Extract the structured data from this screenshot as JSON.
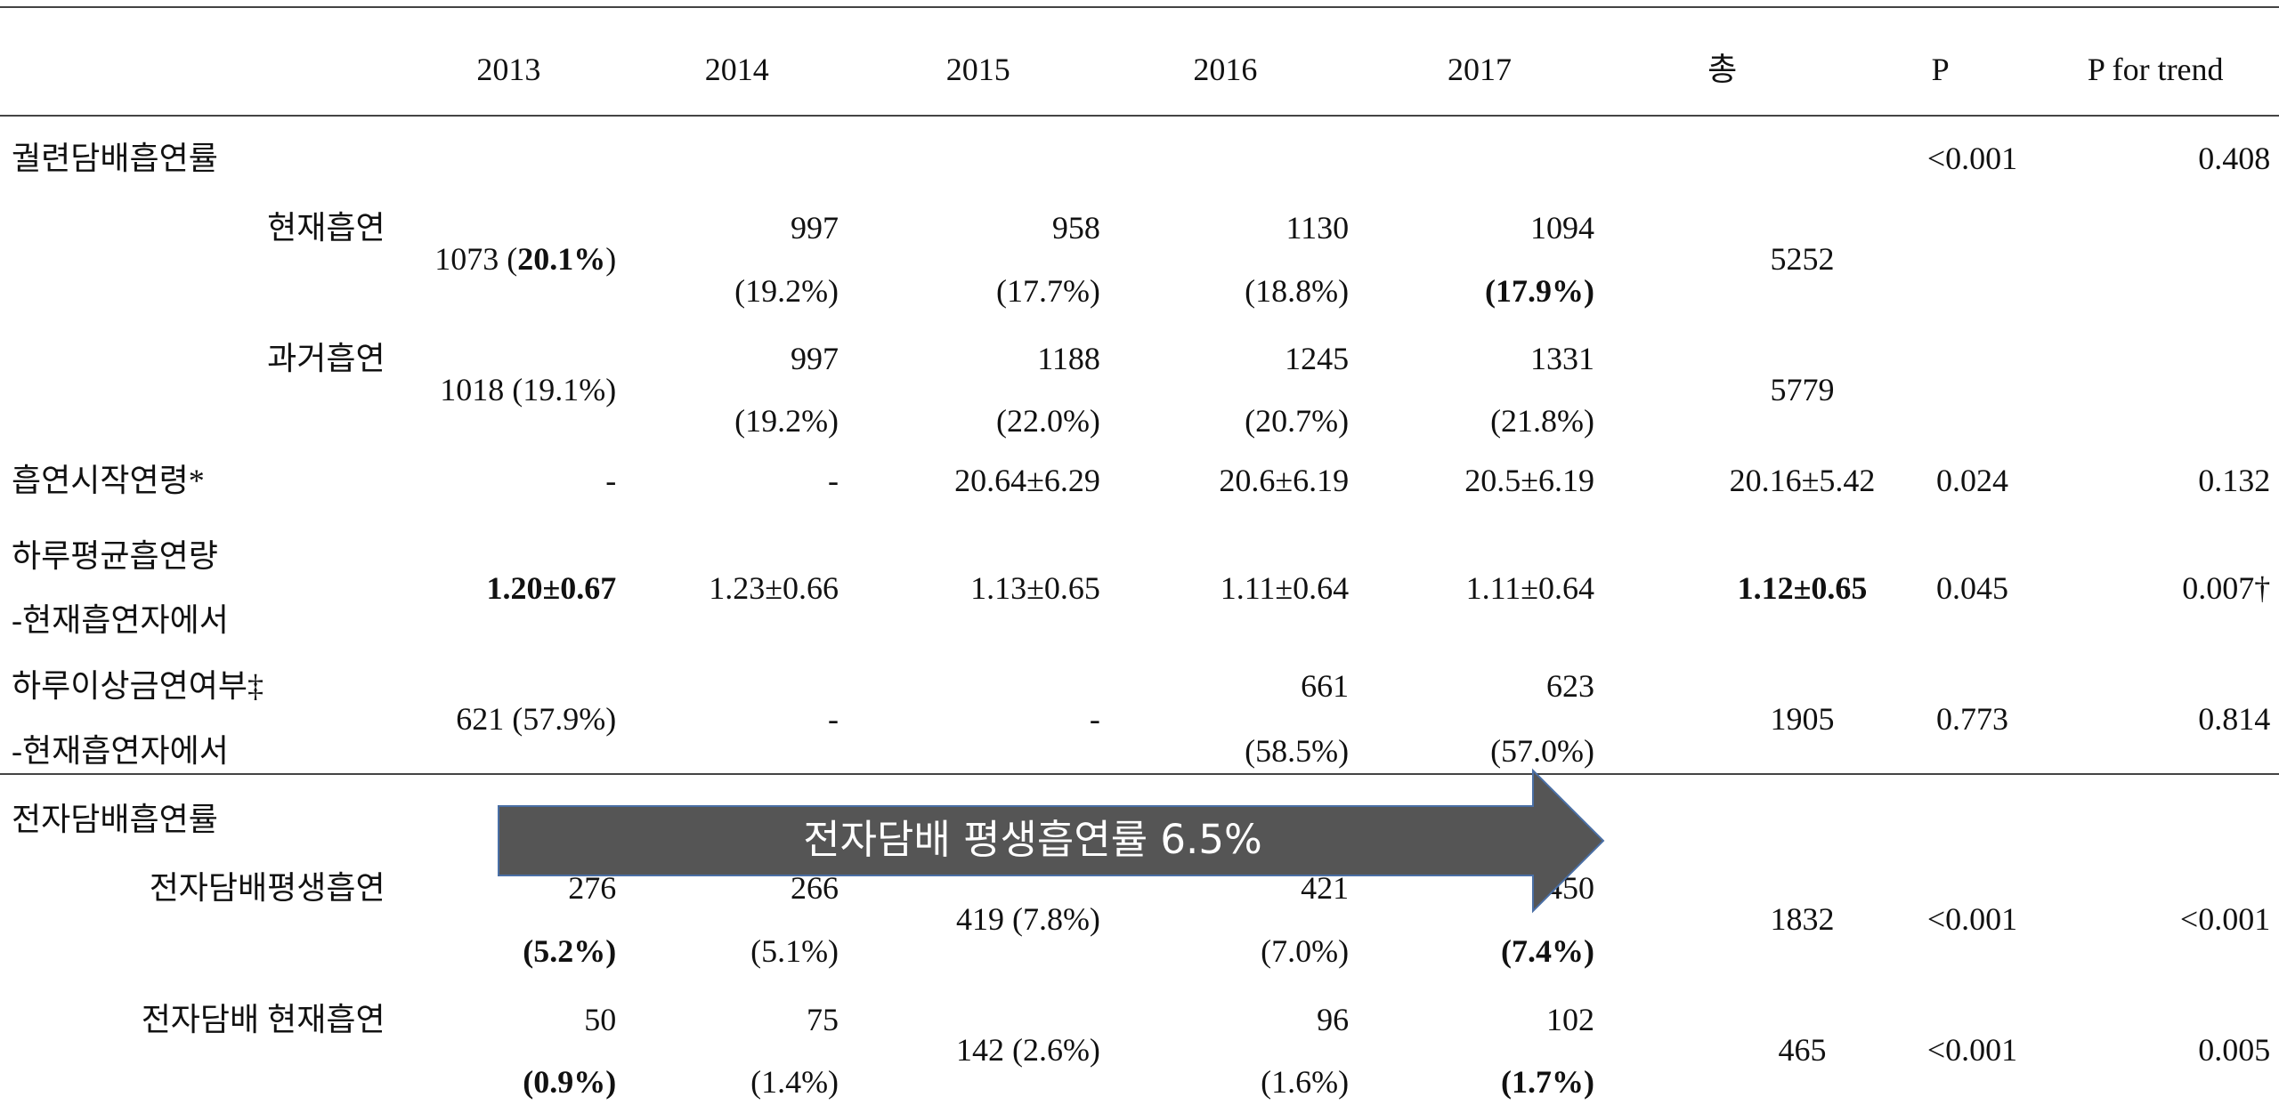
{
  "table": {
    "header": [
      "2013",
      "2014",
      "2015",
      "2016",
      "2017",
      "총",
      "P",
      "P for trend"
    ],
    "rows": [
      {
        "label": [
          "궐련담배흡연률"
        ],
        "cells": [
          null,
          null,
          null,
          null,
          null,
          null,
          [
            "<0.001"
          ],
          [
            "0.408"
          ]
        ]
      },
      {
        "label": [
          "현재흡연"
        ],
        "cells": [
          [
            [
              "1073 (",
              {
                "text": "20.1%",
                "bold": true
              },
              ")"
            ]
          ],
          [
            "997",
            "(19.2%)"
          ],
          [
            "958",
            "(17.7%)"
          ],
          [
            "1130",
            "(18.8%)"
          ],
          [
            "1094",
            {
              "text": "(17.9%)",
              "bold": true
            }
          ],
          [
            "5252"
          ],
          null,
          null
        ]
      },
      {
        "label": [
          "과거흡연"
        ],
        "cells": [
          [
            "1018 (19.1%)"
          ],
          [
            "997",
            "(19.2%)"
          ],
          [
            "1188",
            "(22.0%)"
          ],
          [
            "1245",
            "(20.7%)"
          ],
          [
            "1331",
            "(21.8%)"
          ],
          [
            "5779"
          ],
          null,
          null
        ]
      },
      {
        "label": [
          "흡연시작연령*"
        ],
        "cells": [
          [
            "-"
          ],
          [
            "-"
          ],
          [
            "20.64±6.29"
          ],
          [
            "20.6±6.19"
          ],
          [
            "20.5±6.19"
          ],
          [
            "20.16±5.42"
          ],
          [
            "0.024"
          ],
          [
            "0.132"
          ]
        ]
      },
      {
        "label": [
          "하루평균흡연량",
          "-현재흡연자에서"
        ],
        "cells": [
          [
            {
              "text": "1.20±0.67",
              "bold": true
            }
          ],
          [
            "1.23±0.66"
          ],
          [
            "1.13±0.65"
          ],
          [
            "1.11±0.64"
          ],
          [
            "1.11±0.64"
          ],
          [
            {
              "text": "1.12±0.65",
              "bold": true
            }
          ],
          [
            "0.045"
          ],
          [
            "0.007†"
          ]
        ]
      },
      {
        "label": [
          "하루이상금연여부‡",
          "-현재흡연자에서"
        ],
        "cells": [
          [
            "621 (57.9%)"
          ],
          [
            "-"
          ],
          [
            "-"
          ],
          [
            "661",
            "(58.5%)"
          ],
          [
            "623",
            "(57.0%)"
          ],
          [
            "1905"
          ],
          [
            "0.773"
          ],
          [
            "0.814"
          ]
        ]
      },
      {
        "label": [
          "전자담배흡연률"
        ],
        "cells": [
          null,
          null,
          null,
          null,
          null,
          null,
          null,
          null
        ]
      },
      {
        "label": [
          "전자담배평생흡연"
        ],
        "cells": [
          [
            "276",
            {
              "text": "(5.2%)",
              "bold": true
            }
          ],
          [
            "266",
            "(5.1%)"
          ],
          [
            "419 (7.8%)"
          ],
          [
            "421",
            "(7.0%)"
          ],
          [
            "450",
            {
              "text": "(7.4%)",
              "bold": true
            }
          ],
          [
            "1832"
          ],
          [
            "<0.001"
          ],
          [
            "<0.001"
          ]
        ]
      },
      {
        "label": [
          "전자담배 현재흡연"
        ],
        "cells": [
          [
            "50",
            {
              "text": "(0.9%)",
              "bold": true
            }
          ],
          [
            "75",
            "(1.4%)"
          ],
          [
            "142 (2.6%)"
          ],
          [
            "96",
            "(1.6%)"
          ],
          [
            "102",
            {
              "text": "(1.7%)",
              "bold": true
            }
          ],
          [
            "465"
          ],
          [
            "<0.001"
          ],
          [
            "0.005"
          ]
        ]
      }
    ]
  },
  "callout": "전자담배 평생흡연률 6.5%"
}
